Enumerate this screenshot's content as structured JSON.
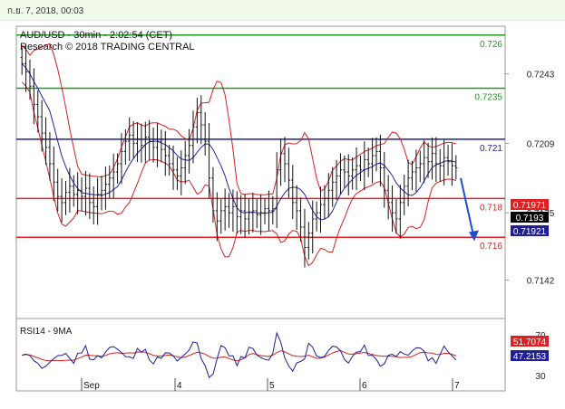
{
  "timestamp": "ก.ย. 7, 2018, 00:03",
  "chart_data": {
    "type": "candlestick",
    "title": "AUD/USD - 30min - 2:02:54 (CET)",
    "subtitle": "Research © 2018 TRADING CENTRAL",
    "ylim": [
      0.7125,
      0.7265
    ],
    "yticks": [
      "0.7243",
      "0.7209",
      "0.7175",
      "0.7142"
    ],
    "xticks": [
      "Sep",
      "4",
      "5",
      "6",
      "7"
    ],
    "levels": [
      {
        "label": "0.726",
        "value": 0.7262,
        "color": "#1f9a1f"
      },
      {
        "label": "0.7235",
        "value": 0.7236,
        "color": "#1f9a1f"
      },
      {
        "label": "0.721",
        "value": 0.7211,
        "color": "#1e1e9a"
      },
      {
        "label": "0.718",
        "value": 0.7182,
        "color": "#e02020"
      },
      {
        "label": "0.716",
        "value": 0.7163,
        "color": "#e02020"
      }
    ],
    "price_tags": [
      {
        "label": "0.71971",
        "value": 0.71971,
        "bg": "#e02020",
        "fg": "#ffffff"
      },
      {
        "label": "0.7193",
        "value": 0.7193,
        "bg": "#000000",
        "fg": "#ffffff"
      },
      {
        "label": "0.71921",
        "value": 0.71921,
        "bg": "#1e1e9a",
        "fg": "#ffffff"
      }
    ],
    "forecast_arrow": {
      "from": 0.7192,
      "to": 0.7162,
      "color": "#1e4fd0"
    },
    "price_path": [
      0.7248,
      0.7244,
      0.7237,
      0.7228,
      0.7222,
      0.7214,
      0.7207,
      0.7199,
      0.719,
      0.7183,
      0.718,
      0.7185,
      0.7188,
      0.7184,
      0.7186,
      0.7183,
      0.7187,
      0.718,
      0.7178,
      0.7184,
      0.7186,
      0.7189,
      0.7192,
      0.7195,
      0.7199,
      0.7205,
      0.721,
      0.7213,
      0.7209,
      0.7211,
      0.7208,
      0.7212,
      0.721,
      0.7207,
      0.721,
      0.7206,
      0.7203,
      0.7199,
      0.7196,
      0.7193,
      0.7197,
      0.7203,
      0.7208,
      0.7217,
      0.7224,
      0.7218,
      0.721,
      0.7192,
      0.7176,
      0.7171,
      0.7176,
      0.7178,
      0.7175,
      0.7178,
      0.7173,
      0.7176,
      0.7172,
      0.7175,
      0.7176,
      0.7174,
      0.7175,
      0.7177,
      0.7176,
      0.7177,
      0.7196,
      0.7204,
      0.7199,
      0.7191,
      0.718,
      0.7176,
      0.7168,
      0.7158,
      0.7165,
      0.7172,
      0.7175,
      0.7179,
      0.7182,
      0.7186,
      0.719,
      0.7193,
      0.7196,
      0.7195,
      0.7193,
      0.7196,
      0.7198,
      0.7196,
      0.7201,
      0.7199,
      0.7203,
      0.7205,
      0.7197,
      0.7186,
      0.718,
      0.7175,
      0.7172,
      0.718,
      0.7188,
      0.7192,
      0.7195,
      0.7197,
      0.7199,
      0.7202,
      0.72,
      0.7204,
      0.7199,
      0.7198,
      0.7202,
      0.72,
      0.7198,
      0.7197
    ],
    "rsi": {
      "label": "RSI14 - 9MA",
      "ylim": [
        20,
        80
      ],
      "yticks": [
        "70",
        "30"
      ],
      "tags": [
        {
          "label": "51.7074",
          "value": 51.7074,
          "bg": "#e02020",
          "fg": "#ffffff"
        },
        {
          "label": "47.2153",
          "value": 47.2153,
          "bg": "#1e1e9a",
          "fg": "#ffffff"
        }
      ]
    }
  }
}
